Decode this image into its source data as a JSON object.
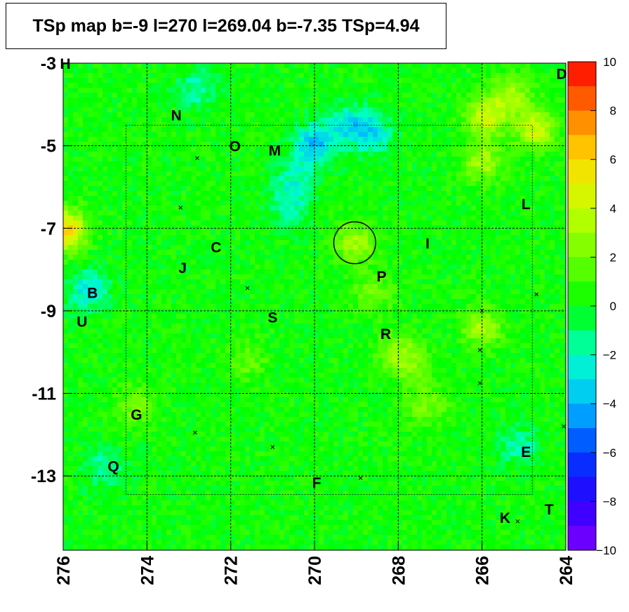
{
  "title": "TSp map b=-9 l=270 l=269.04 b=-7.35 TSp=4.94",
  "chart_data": {
    "type": "heatmap",
    "xlim": [
      276,
      264
    ],
    "ylim": [
      -14.8,
      -3
    ],
    "xticks": [
      "276",
      "274",
      "272",
      "270",
      "268",
      "266",
      "264"
    ],
    "yticks": [
      "-3",
      "-5",
      "-7",
      "-9",
      "-11",
      "-13"
    ],
    "grid": true,
    "colorbar": {
      "range": [
        -10,
        10
      ],
      "ticks": [
        "10",
        "8",
        "6",
        "4",
        "2",
        "0",
        "−2",
        "−4",
        "−6",
        "−8",
        "−10"
      ]
    },
    "circle": {
      "l": 269.04,
      "b": -7.35,
      "r": 0.5
    },
    "labels": [
      {
        "text": "H",
        "l": 275.95,
        "b": -3.0
      },
      {
        "text": "D",
        "l": 264.1,
        "b": -3.25
      },
      {
        "text": "N",
        "l": 273.3,
        "b": -4.25
      },
      {
        "text": "O",
        "l": 271.9,
        "b": -5.0
      },
      {
        "text": "M",
        "l": 270.95,
        "b": -5.1
      },
      {
        "text": "L",
        "l": 264.95,
        "b": -6.4
      },
      {
        "text": "C",
        "l": 272.35,
        "b": -7.45
      },
      {
        "text": "I",
        "l": 267.3,
        "b": -7.35
      },
      {
        "text": "J",
        "l": 273.15,
        "b": -7.95
      },
      {
        "text": "P",
        "l": 268.4,
        "b": -8.15
      },
      {
        "text": "B",
        "l": 275.3,
        "b": -8.55
      },
      {
        "text": "S",
        "l": 271.0,
        "b": -9.15
      },
      {
        "text": "U",
        "l": 275.55,
        "b": -9.25
      },
      {
        "text": "R",
        "l": 268.3,
        "b": -9.55
      },
      {
        "text": "G",
        "l": 274.25,
        "b": -11.5
      },
      {
        "text": "E",
        "l": 264.95,
        "b": -12.4
      },
      {
        "text": "Q",
        "l": 274.8,
        "b": -12.75
      },
      {
        "text": "F",
        "l": 269.95,
        "b": -13.15
      },
      {
        "text": "K",
        "l": 265.45,
        "b": -14.0
      },
      {
        "text": "T",
        "l": 264.4,
        "b": -13.8
      }
    ],
    "crosses": [
      {
        "l": 272.8,
        "b": -5.3
      },
      {
        "l": 273.2,
        "b": -6.5
      },
      {
        "l": 271.6,
        "b": -8.45
      },
      {
        "l": 264.7,
        "b": -8.6
      },
      {
        "l": 266.0,
        "b": -9.0
      },
      {
        "l": 266.05,
        "b": -9.95
      },
      {
        "l": 266.05,
        "b": -10.75
      },
      {
        "l": 272.85,
        "b": -11.95
      },
      {
        "l": 271.0,
        "b": -12.3
      },
      {
        "l": 264.05,
        "b": -11.8
      },
      {
        "l": 268.9,
        "b": -13.05
      },
      {
        "l": 265.15,
        "b": -14.1
      }
    ],
    "hotspots": [
      {
        "l": 275.95,
        "b": -7.05,
        "v": 6
      },
      {
        "l": 265.9,
        "b": -4.3,
        "v": 4
      },
      {
        "l": 264.7,
        "b": -4.6,
        "v": 4
      },
      {
        "l": 266.0,
        "b": -5.4,
        "v": 3
      },
      {
        "l": 265.3,
        "b": -3.8,
        "v": 3
      },
      {
        "l": 269.04,
        "b": -7.35,
        "v": 3
      },
      {
        "l": 268.0,
        "b": -10.0,
        "v": 2.5
      },
      {
        "l": 266.0,
        "b": -9.4,
        "v": 3
      },
      {
        "l": 268.6,
        "b": -8.6,
        "v": 2
      },
      {
        "l": 267.3,
        "b": -11.3,
        "v": 2
      },
      {
        "l": 274.3,
        "b": -11.3,
        "v": 2
      },
      {
        "l": 271.6,
        "b": -10.2,
        "v": 1.5
      },
      {
        "l": 267.6,
        "b": -10.4,
        "v": 1.5
      }
    ],
    "coldspots": [
      {
        "l": 270.0,
        "b": -4.95,
        "v": -4
      },
      {
        "l": 269.2,
        "b": -4.5,
        "v": -3
      },
      {
        "l": 268.6,
        "b": -4.7,
        "v": -3
      },
      {
        "l": 270.5,
        "b": -5.8,
        "v": -2
      },
      {
        "l": 272.8,
        "b": -3.6,
        "v": -2
      },
      {
        "l": 275.4,
        "b": -8.5,
        "v": -3
      },
      {
        "l": 275.0,
        "b": -12.8,
        "v": -2
      },
      {
        "l": 270.6,
        "b": -6.5,
        "v": -2
      },
      {
        "l": 265.1,
        "b": -12.3,
        "v": -2
      }
    ]
  }
}
